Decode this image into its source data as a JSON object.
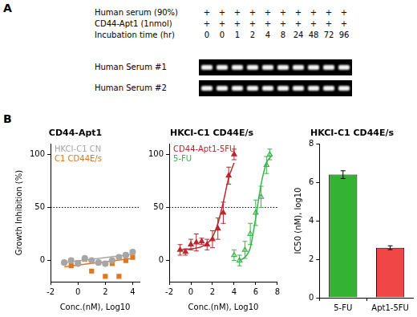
{
  "panel_labels": [
    "A",
    "B"
  ],
  "gel": {
    "rows": [
      {
        "label": "Human serum (90%)",
        "marks": [
          "+",
          "+",
          "+",
          "+",
          "+",
          "+",
          "+",
          "+",
          "+",
          "+"
        ]
      },
      {
        "label": "CD44-Apt1 (1nmol)",
        "marks": [
          "+",
          "+",
          "+",
          "+",
          "+",
          "+",
          "+",
          "+",
          "+",
          "+"
        ]
      },
      {
        "label": "Incubation time (hr)",
        "marks": [
          "0",
          "0",
          "1",
          "2",
          "4",
          "8",
          "24",
          "48",
          "72",
          "96"
        ]
      }
    ],
    "lanes": [
      "Human Serum #1",
      "Human Serum #2"
    ]
  },
  "chart_data": [
    {
      "type": "scatter",
      "title": "CD44-Apt1",
      "x_label": "Conc.(nM), Log10",
      "y_label": "Growth Inhibition (%)",
      "xlim": [
        -2,
        4.5
      ],
      "xticks": [
        -2,
        0,
        2,
        4
      ],
      "ylim": [
        -20,
        110
      ],
      "yticks": [
        0,
        50,
        100
      ],
      "grid": false,
      "legend": "upper left",
      "reference_line": {
        "value": 50,
        "line_style": "dotted"
      },
      "series": [
        {
          "name": "HKCI-C1 CN",
          "color": "#a6a6a6",
          "marker": "circle",
          "x": [
            -1,
            -0.5,
            0,
            0.5,
            1,
            1.5,
            2,
            2.5,
            3,
            3.5,
            4
          ],
          "values": [
            -2,
            0,
            -3,
            2,
            0,
            -2,
            -3,
            0,
            3,
            5,
            8
          ],
          "fit": {
            "x": [
              -1,
              4
            ],
            "values": [
              -2,
              6
            ]
          }
        },
        {
          "name": "C1 CD44E/s",
          "color": "#e0761e",
          "marker": "square",
          "x": [
            -1,
            -0.5,
            0,
            0.5,
            1,
            1.5,
            2,
            2.5,
            3,
            3.5,
            4
          ],
          "values": [
            -2,
            -5,
            -2,
            1,
            -10,
            -2,
            -15,
            -3,
            -15,
            0,
            3
          ],
          "fit": {
            "x": [
              -1,
              4
            ],
            "values": [
              -6,
              2
            ]
          }
        }
      ]
    },
    {
      "type": "scatter",
      "title": "HKCI-C1 CD44E/s",
      "x_label": "Conc.(nM), Log10",
      "xlim": [
        -2,
        8
      ],
      "xticks": [
        -2,
        0,
        2,
        4,
        6,
        8
      ],
      "ylim": [
        -20,
        110
      ],
      "yticks": [
        0,
        50,
        100
      ],
      "grid": false,
      "legend": "upper left",
      "reference_line": {
        "value": 50,
        "line_style": "dotted"
      },
      "series": [
        {
          "name": "CD44-Apt1-5FU",
          "color": "#b8282c",
          "marker": "triangle",
          "x": [
            -1,
            -0.5,
            0,
            0.5,
            1,
            1.5,
            2,
            2.5,
            3,
            3.5,
            4
          ],
          "values": [
            10,
            8,
            15,
            17,
            18,
            15,
            20,
            30,
            45,
            80,
            100
          ],
          "errors": [
            5,
            3,
            5,
            8,
            3,
            5,
            8,
            10,
            10,
            8,
            5
          ],
          "fit": {
            "x": [
              -1,
              0,
              1,
              1.5,
              2,
              2.5,
              3,
              3.5,
              4
            ],
            "values": [
              10,
              11,
              13,
              16,
              22,
              35,
              55,
              78,
              92
            ]
          }
        },
        {
          "name": "5-FU",
          "color": "#3cb44b",
          "marker": "triangle-open",
          "x": [
            4,
            4.5,
            5,
            5.5,
            6,
            6.5,
            7,
            7.3
          ],
          "values": [
            5,
            0,
            10,
            25,
            45,
            60,
            90,
            100
          ],
          "errors": [
            5,
            5,
            8,
            10,
            12,
            10,
            8,
            5
          ],
          "fit": {
            "x": [
              4.5,
              5,
              5.5,
              6,
              6.5,
              7,
              7.5
            ],
            "values": [
              0,
              3,
              12,
              40,
              72,
              92,
              99
            ]
          }
        }
      ]
    },
    {
      "type": "bar",
      "title": "HKCI-C1 CD44E/s",
      "y_label": "IC50 (nM), log10",
      "categories": [
        "5-FU",
        "Apt1-5FU"
      ],
      "values": [
        6.4,
        2.6
      ],
      "errors": [
        0.2,
        0.1
      ],
      "colors": [
        "#33b233",
        "#f04646"
      ],
      "ylim": [
        0,
        8
      ],
      "yticks": [
        0,
        2,
        4,
        6,
        8
      ],
      "grid": false
    }
  ]
}
